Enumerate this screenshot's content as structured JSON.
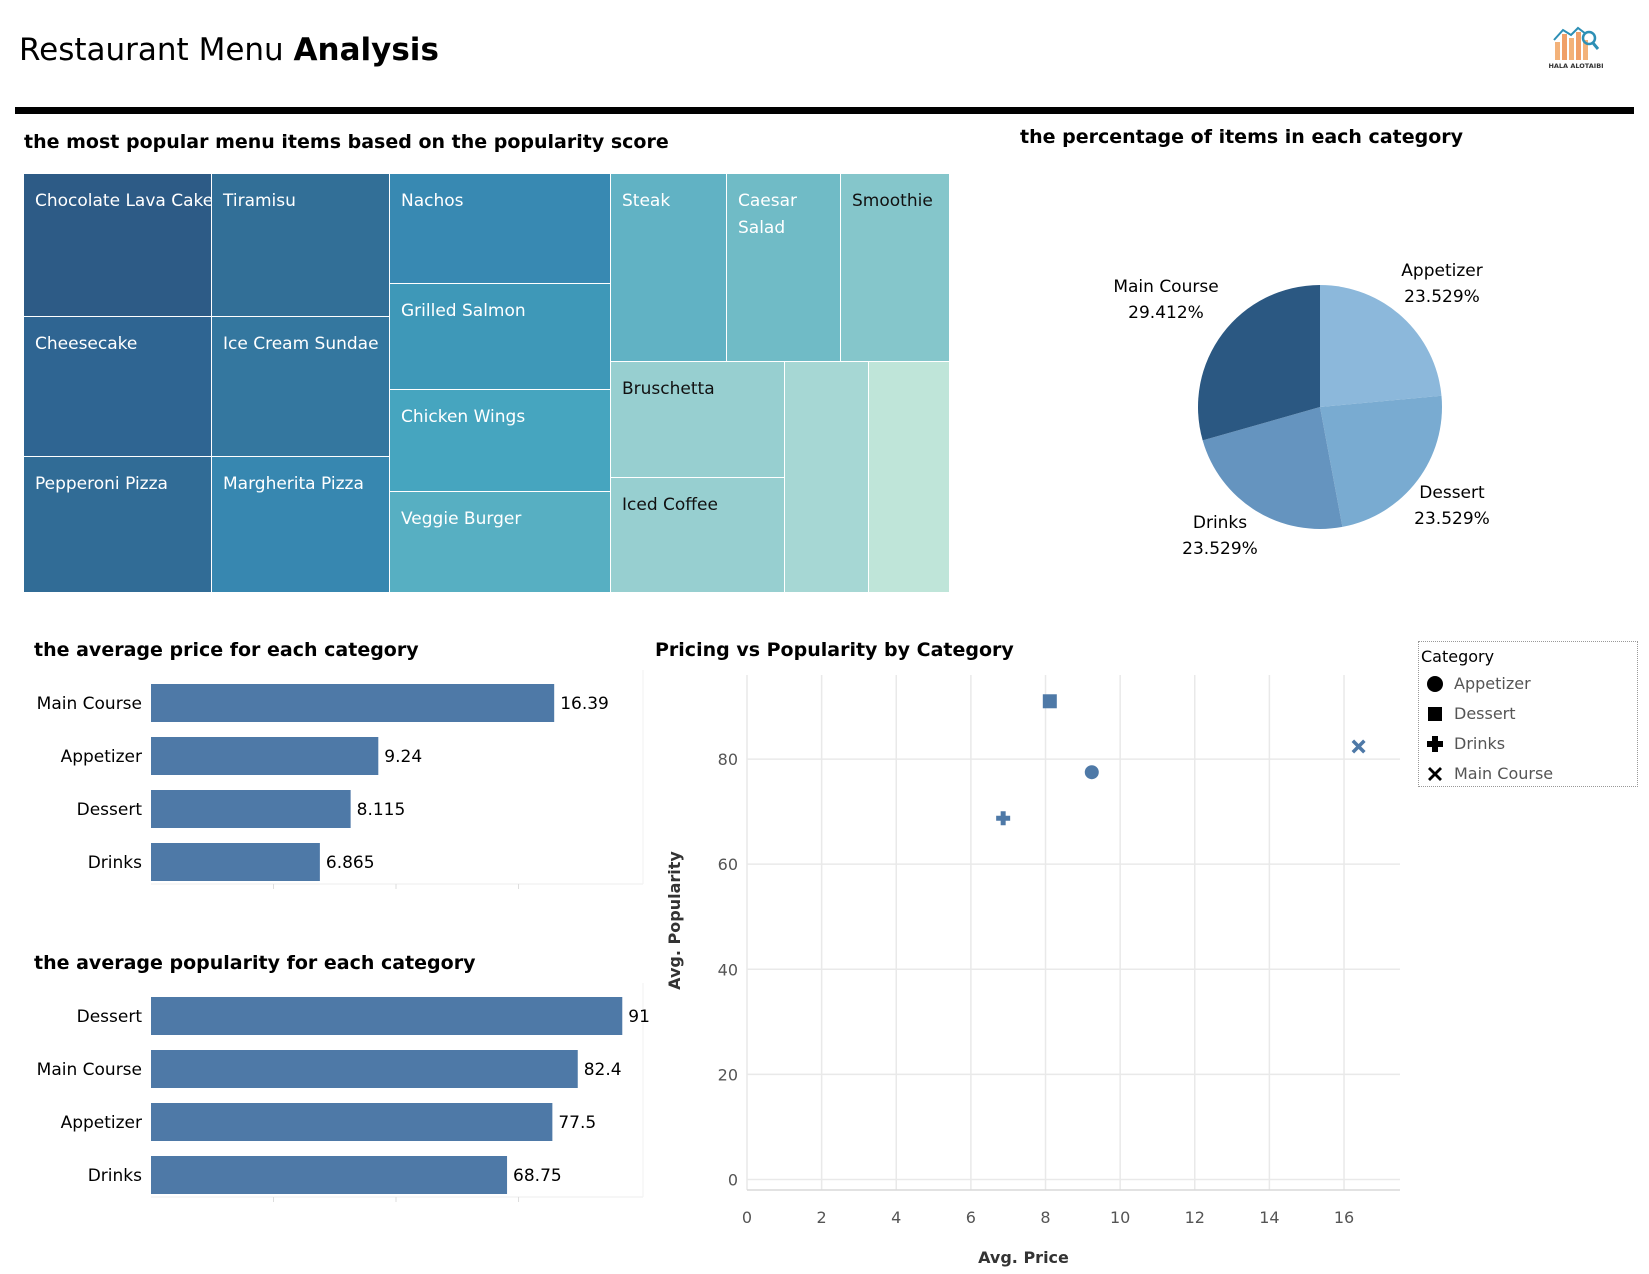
{
  "header": {
    "title_light": "Restaurant Menu",
    "title_bold": "Analysis",
    "logo_text": "HALA ALOTAIBI"
  },
  "colors": {
    "bar": "#4e79a7",
    "rule": "#000000",
    "grid": "#e9e9e9"
  },
  "chart_data": [
    {
      "type": "treemap",
      "title": "the most popular menu items based on the popularity score",
      "items": [
        {
          "label": "Chocolate Lava Cake",
          "color": "#2d5b86"
        },
        {
          "label": "Tiramisu",
          "color": "#326f97"
        },
        {
          "label": "Cheesecake",
          "color": "#2f6592"
        },
        {
          "label": "Ice Cream Sundae",
          "color": "#34779f"
        },
        {
          "label": "Pepperoni Pizza",
          "color": "#316c96"
        },
        {
          "label": "Margherita Pizza",
          "color": "#3787b0"
        },
        {
          "label": "Nachos",
          "color": "#3889b2"
        },
        {
          "label": "Grilled Salmon",
          "color": "#3e98b8"
        },
        {
          "label": "Chicken Wings",
          "color": "#46a5bf"
        },
        {
          "label": "Veggie Burger",
          "color": "#57afc2"
        },
        {
          "label": "Steak",
          "color": "#61b2c4"
        },
        {
          "label": "Caesar Salad",
          "color": "#70bbc6"
        },
        {
          "label": "Smoothie",
          "color": "#85c6cb"
        },
        {
          "label": "Bruschetta",
          "color": "#97cfd0"
        },
        {
          "label": "Iced Coffee",
          "color": "#97cfd0"
        },
        {
          "label": "",
          "color": "#a6d7d4"
        },
        {
          "label": "",
          "color": "#bfe5d9"
        }
      ]
    },
    {
      "type": "pie",
      "title": "the percentage of items in each category",
      "slices": [
        {
          "name": "Appetizer",
          "label": "23.529%",
          "value": 23.529,
          "color": "#8cb8db"
        },
        {
          "name": "Dessert",
          "label": "23.529%",
          "value": 23.529,
          "color": "#79abd1"
        },
        {
          "name": "Drinks",
          "label": "23.529%",
          "value": 23.529,
          "color": "#6594bf"
        },
        {
          "name": "Main Course",
          "label": "29.412%",
          "value": 29.412,
          "color": "#2b5882"
        }
      ]
    },
    {
      "type": "bar",
      "orientation": "horizontal",
      "title": "the average price for each category",
      "categories": [
        "Main Course",
        "Appetizer",
        "Dessert",
        "Drinks"
      ],
      "values": [
        16.39,
        9.24,
        8.115,
        6.865
      ],
      "value_labels": [
        "16.39",
        "9.24",
        "8.115",
        "6.865"
      ],
      "xlim": [
        0,
        20
      ]
    },
    {
      "type": "bar",
      "orientation": "horizontal",
      "title": "the average popularity for each category",
      "categories": [
        "Dessert",
        "Main Course",
        "Appetizer",
        "Drinks"
      ],
      "values": [
        91,
        82.4,
        77.5,
        68.75
      ],
      "value_labels": [
        "91",
        "82.4",
        "77.5",
        "68.75"
      ],
      "xlim": [
        0,
        95
      ]
    },
    {
      "type": "scatter",
      "title": "Pricing vs Popularity by Category",
      "xlabel": "Avg. Price",
      "ylabel": "Avg. Popularity",
      "xlim": [
        0,
        17.5
      ],
      "ylim": [
        -2,
        96
      ],
      "xticks": [
        0,
        2,
        4,
        6,
        8,
        10,
        12,
        14,
        16
      ],
      "yticks": [
        0,
        20,
        40,
        60,
        80
      ],
      "points": [
        {
          "category": "Appetizer",
          "shape": "circle",
          "x": 9.24,
          "y": 77.5
        },
        {
          "category": "Dessert",
          "shape": "square",
          "x": 8.115,
          "y": 91
        },
        {
          "category": "Drinks",
          "shape": "plus",
          "x": 6.865,
          "y": 68.75
        },
        {
          "category": "Main Course",
          "shape": "cross",
          "x": 16.39,
          "y": 82.4
        }
      ],
      "legend": {
        "title": "Category",
        "placement": "right",
        "entries": [
          "Appetizer",
          "Dessert",
          "Drinks",
          "Main Course"
        ]
      }
    }
  ]
}
